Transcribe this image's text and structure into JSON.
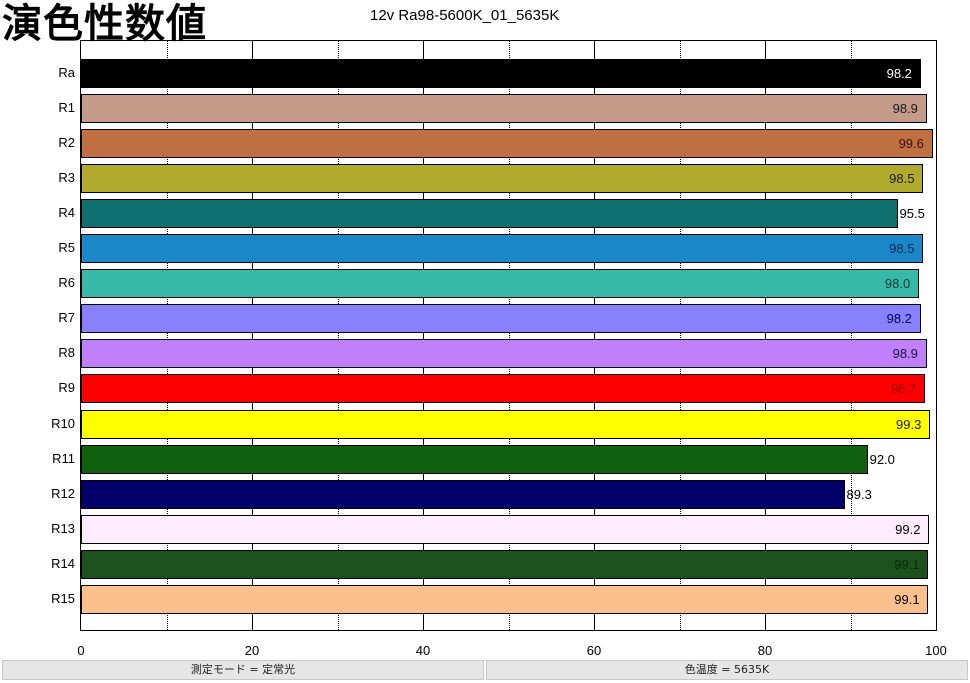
{
  "header": {
    "big_title": "演色性数値",
    "chart_title": "12v Ra98-5600K_01_5635K"
  },
  "footer": {
    "left": "測定モード = 定常光",
    "right": "色温度 = 5635K"
  },
  "chart_data": {
    "type": "bar",
    "orientation": "horizontal",
    "title": "12v Ra98-5600K_01_5635K",
    "xlabel": "",
    "ylabel": "",
    "xlim": [
      0,
      100
    ],
    "x_ticks": [
      0,
      20,
      40,
      60,
      80,
      100
    ],
    "grid": {
      "major_every": 20,
      "minor_every": 10,
      "minor_style": "dotted"
    },
    "categories": [
      "Ra",
      "R1",
      "R2",
      "R3",
      "R4",
      "R5",
      "R6",
      "R7",
      "R8",
      "R9",
      "R10",
      "R11",
      "R12",
      "R13",
      "R14",
      "R15"
    ],
    "values": [
      98.2,
      98.9,
      99.6,
      98.5,
      95.5,
      98.5,
      98.0,
      98.2,
      98.9,
      98.7,
      99.3,
      92.0,
      89.3,
      99.2,
      99.1,
      99.1
    ],
    "labels": [
      "98.2",
      "98.9",
      "99.6",
      "98.5",
      "95.5",
      "98.5",
      "98.0",
      "98.2",
      "98.9",
      "98.7",
      "99.3",
      "92.0",
      "89.3",
      "99.2",
      "99.1",
      "99.1"
    ],
    "colors": [
      "#000000",
      "#c49a88",
      "#c07040",
      "#b2aa2c",
      "#107070",
      "#1a88c8",
      "#38b8a8",
      "#8880fc",
      "#c080fc",
      "#fc0000",
      "#ffff00",
      "#106010",
      "#000068",
      "#fcecfc",
      "#1c501c",
      "#fcc08c"
    ],
    "label_colors": [
      "#ffffff",
      "#1a1a1a",
      "#3a1010",
      "#1a1a1a",
      "#000000",
      "#0a2a50",
      "#0a3a38",
      "#000050",
      "#1a1040",
      "#a00000",
      "#202000",
      "#000000",
      "#000000",
      "#000000",
      "#0a2a0a",
      "#000000"
    ]
  }
}
